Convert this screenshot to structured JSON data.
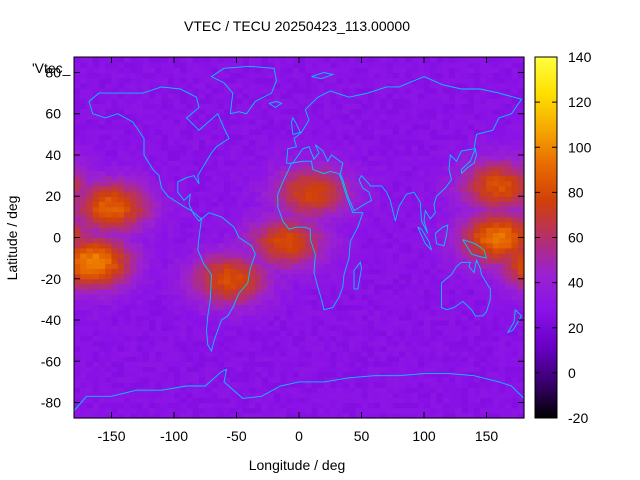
{
  "chart_data": {
    "type": "heatmap",
    "title": "VTEC / TECU 20250423_113.00000",
    "xlabel": "Longitude / deg",
    "ylabel": "Latitude / deg",
    "legend_tag": "'Vtec_",
    "xlim": [
      -180,
      180
    ],
    "ylim": [
      -87.5,
      87.5
    ],
    "x_ticks": [
      -150,
      -100,
      -50,
      0,
      50,
      100,
      150
    ],
    "y_ticks": [
      -80,
      -60,
      -40,
      -20,
      0,
      20,
      40,
      60,
      80
    ],
    "colorbar": {
      "range": [
        -20,
        140
      ],
      "ticks": [
        -20,
        0,
        20,
        40,
        60,
        80,
        100,
        120,
        140
      ],
      "palette": [
        "#000000",
        "#3a0070",
        "#6a00c8",
        "#8a12e8",
        "#9b22d0",
        "#b5306a",
        "#d0400a",
        "#e86a00",
        "#f6a800",
        "#ffe000",
        "#ffff40"
      ]
    },
    "grid_lon_step": 5,
    "grid_lat_step": 2.5,
    "features": [
      {
        "name": "pacific-anomaly-north",
        "lon": -150,
        "lat": 15,
        "peak": 88
      },
      {
        "name": "pacific-anomaly-south",
        "lon": -165,
        "lat": -12,
        "peak": 100
      },
      {
        "name": "south-america-anomaly",
        "lon": -55,
        "lat": -20,
        "peak": 82
      },
      {
        "name": "africa-north-patch",
        "lon": 10,
        "lat": 22,
        "peak": 78
      },
      {
        "name": "africa-equator-patch",
        "lon": -10,
        "lat": -2,
        "peak": 80
      },
      {
        "name": "west-pacific-anomaly",
        "lon": 160,
        "lat": 0,
        "peak": 95
      },
      {
        "name": "west-pacific-north",
        "lon": 160,
        "lat": 25,
        "peak": 82
      }
    ],
    "background_level": 28,
    "grid": false,
    "coastline_color": "#00c8ff"
  }
}
